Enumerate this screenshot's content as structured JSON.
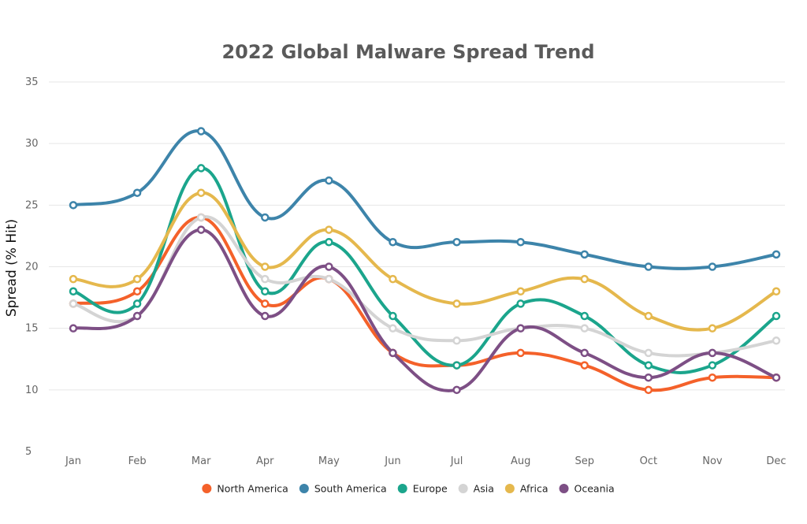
{
  "chart_data": {
    "type": "line",
    "title": "2022 Global Malware Spread Trend",
    "xlabel": "",
    "ylabel": "Spread (% Hit)",
    "ylim": [
      5,
      35
    ],
    "yticks": [
      5,
      10,
      15,
      20,
      25,
      30,
      35
    ],
    "grid": true,
    "smooth": true,
    "legend": "bottom-center",
    "categories": [
      "Jan",
      "Feb",
      "Mar",
      "Apr",
      "May",
      "Jun",
      "Jul",
      "Aug",
      "Sep",
      "Oct",
      "Nov",
      "Dec"
    ],
    "series": [
      {
        "name": "North America",
        "color": "#f4612a",
        "values": [
          17,
          18,
          24,
          17,
          19,
          13,
          12,
          13,
          12,
          10,
          11,
          11
        ]
      },
      {
        "name": "South America",
        "color": "#3d84aa",
        "values": [
          25,
          26,
          31,
          24,
          27,
          22,
          22,
          22,
          21,
          20,
          20,
          21
        ]
      },
      {
        "name": "Europe",
        "color": "#1ba58c",
        "values": [
          18,
          17,
          28,
          18,
          22,
          16,
          12,
          17,
          16,
          12,
          12,
          16
        ]
      },
      {
        "name": "Asia",
        "color": "#d4d4d4",
        "values": [
          17,
          16,
          24,
          19,
          19,
          15,
          14,
          15,
          15,
          13,
          13,
          14
        ]
      },
      {
        "name": "Africa",
        "color": "#e5b84d",
        "values": [
          19,
          19,
          26,
          20,
          23,
          19,
          17,
          18,
          19,
          16,
          15,
          18
        ]
      },
      {
        "name": "Oceania",
        "color": "#7d4f85",
        "values": [
          15,
          16,
          23,
          16,
          20,
          13,
          10,
          15,
          13,
          11,
          13,
          11
        ]
      }
    ]
  }
}
